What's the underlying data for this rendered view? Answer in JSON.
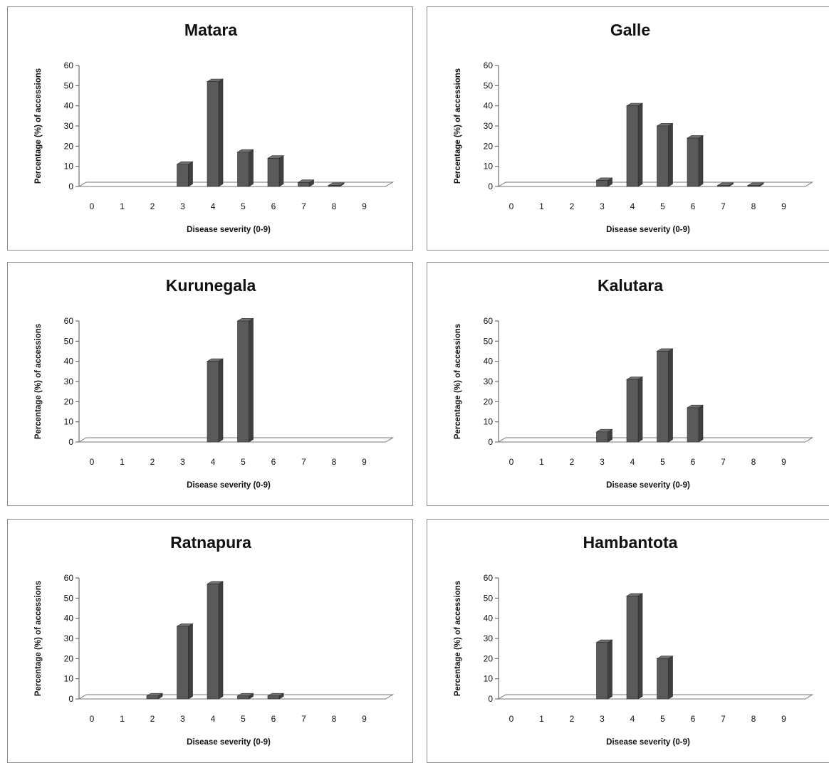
{
  "chart_data": [
    {
      "type": "bar",
      "title": "Matara",
      "xlabel": "Disease severity (0-9)",
      "ylabel": "Percentage (%) of accessions",
      "categories": [
        "0",
        "1",
        "2",
        "3",
        "4",
        "5",
        "6",
        "7",
        "8",
        "9"
      ],
      "values": [
        0,
        0,
        0,
        11,
        52,
        17,
        14,
        2,
        0.5,
        0
      ],
      "yticks": [
        "0",
        "10",
        "20",
        "30",
        "40",
        "50",
        "60"
      ],
      "ylim": [
        0,
        60
      ],
      "grid": false,
      "legend": "none",
      "bar_color": "#5a5a5a"
    },
    {
      "type": "bar",
      "title": "Galle",
      "xlabel": "Disease severity (0-9)",
      "ylabel": "Percentage (%) of accessions",
      "categories": [
        "0",
        "1",
        "2",
        "3",
        "4",
        "5",
        "6",
        "7",
        "8",
        "9"
      ],
      "values": [
        0,
        0,
        0,
        3,
        40,
        30,
        24,
        0.5,
        0.5,
        0
      ],
      "yticks": [
        "0",
        "10",
        "20",
        "30",
        "40",
        "50",
        "60"
      ],
      "ylim": [
        0,
        60
      ],
      "grid": false,
      "legend": "none",
      "bar_color": "#5a5a5a"
    },
    {
      "type": "bar",
      "title": "Kurunegala",
      "xlabel": "Disease severity (0-9)",
      "ylabel": "Percentage (%) of accessions",
      "categories": [
        "0",
        "1",
        "2",
        "3",
        "4",
        "5",
        "6",
        "7",
        "8",
        "9"
      ],
      "values": [
        0,
        0,
        0,
        0,
        40,
        60,
        0,
        0,
        0,
        0
      ],
      "yticks": [
        "0",
        "10",
        "20",
        "30",
        "40",
        "50",
        "60"
      ],
      "ylim": [
        0,
        60
      ],
      "grid": false,
      "legend": "none",
      "bar_color": "#5a5a5a"
    },
    {
      "type": "bar",
      "title": "Kalutara",
      "xlabel": "Disease severity (0-9)",
      "ylabel": "Percentage (%) of accessions",
      "categories": [
        "0",
        "1",
        "2",
        "3",
        "4",
        "5",
        "6",
        "7",
        "8",
        "9"
      ],
      "values": [
        0,
        0,
        0,
        5,
        31,
        45,
        17,
        0,
        0,
        0
      ],
      "yticks": [
        "0",
        "10",
        "20",
        "30",
        "40",
        "50",
        "60"
      ],
      "ylim": [
        0,
        60
      ],
      "grid": false,
      "legend": "none",
      "bar_color": "#5a5a5a"
    },
    {
      "type": "bar",
      "title": "Ratnapura",
      "xlabel": "Disease severity (0-9)",
      "ylabel": "Percentage (%) of accessions",
      "categories": [
        "0",
        "1",
        "2",
        "3",
        "4",
        "5",
        "6",
        "7",
        "8",
        "9"
      ],
      "values": [
        0,
        0,
        1.5,
        36,
        57,
        1.5,
        1.5,
        0,
        0,
        0
      ],
      "yticks": [
        "0",
        "10",
        "20",
        "30",
        "40",
        "50",
        "60"
      ],
      "ylim": [
        0,
        60
      ],
      "grid": false,
      "legend": "none",
      "bar_color": "#5a5a5a"
    },
    {
      "type": "bar",
      "title": "Hambantota",
      "xlabel": "Disease severity (0-9)",
      "ylabel": "Percentage (%) of accessions",
      "categories": [
        "0",
        "1",
        "2",
        "3",
        "4",
        "5",
        "6",
        "7",
        "8",
        "9"
      ],
      "values": [
        0,
        0,
        0,
        28,
        51,
        20,
        0,
        0,
        0,
        0
      ],
      "yticks": [
        "0",
        "10",
        "20",
        "30",
        "40",
        "50",
        "60"
      ],
      "ylim": [
        0,
        60
      ],
      "grid": false,
      "legend": "none",
      "bar_color": "#5a5a5a"
    }
  ]
}
